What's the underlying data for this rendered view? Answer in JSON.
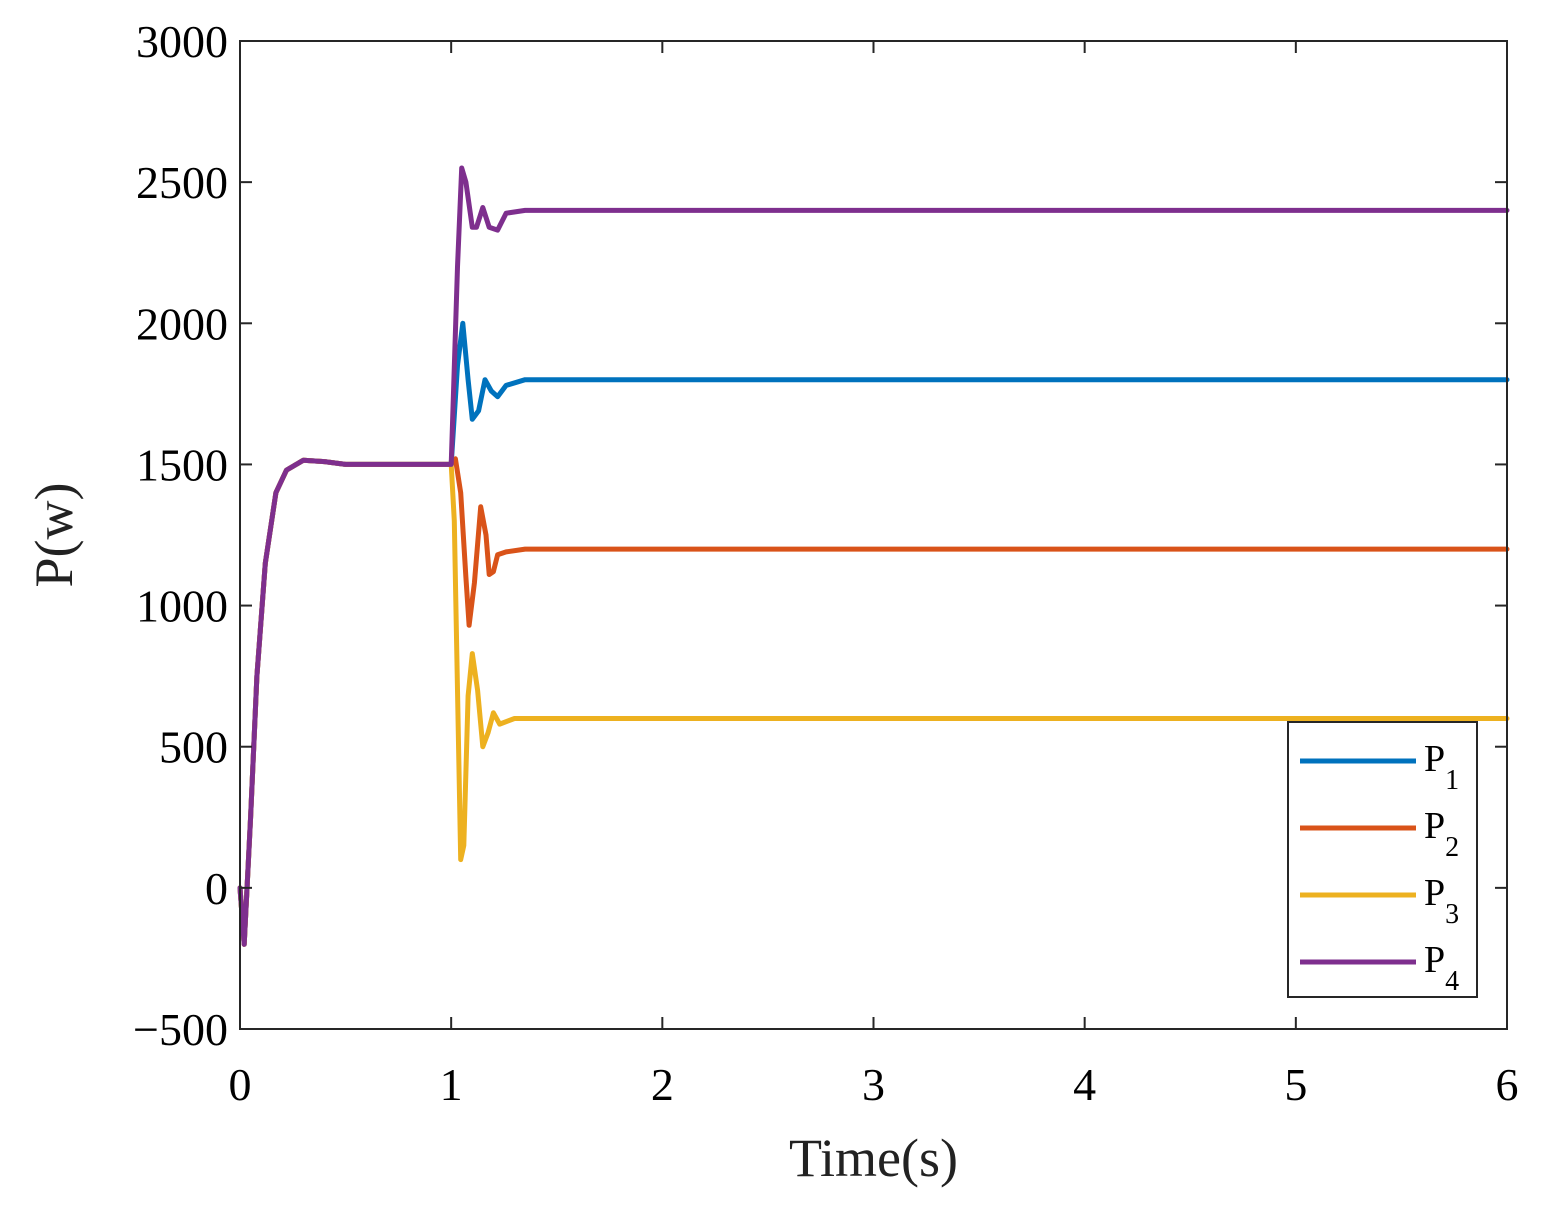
{
  "chart_data": {
    "type": "line",
    "xlabel": "Time(s)",
    "ylabel": "P(w)",
    "xlim": [
      0,
      6
    ],
    "ylim": [
      -500,
      3000
    ],
    "xticks": [
      0,
      1,
      2,
      3,
      4,
      5,
      6
    ],
    "yticks": [
      -500,
      0,
      500,
      1000,
      1500,
      2000,
      2500,
      3000
    ],
    "xtick_labels": [
      "0",
      "1",
      "2",
      "3",
      "4",
      "5",
      "6"
    ],
    "ytick_labels": [
      "−500",
      "0",
      "500",
      "1000",
      "1500",
      "2000",
      "2500",
      "3000"
    ],
    "grid": false,
    "legend_position": "bottom-right",
    "series": [
      {
        "name": "P",
        "sub": "1",
        "color": "#0072BD",
        "points": [
          [
            0,
            0
          ],
          [
            0.02,
            -200
          ],
          [
            0.05,
            250
          ],
          [
            0.08,
            750
          ],
          [
            0.12,
            1150
          ],
          [
            0.17,
            1400
          ],
          [
            0.22,
            1480
          ],
          [
            0.3,
            1515
          ],
          [
            0.4,
            1510
          ],
          [
            0.5,
            1500
          ],
          [
            1.0,
            1500
          ],
          [
            1.03,
            1850
          ],
          [
            1.055,
            2000
          ],
          [
            1.08,
            1800
          ],
          [
            1.1,
            1660
          ],
          [
            1.13,
            1690
          ],
          [
            1.16,
            1800
          ],
          [
            1.19,
            1760
          ],
          [
            1.22,
            1740
          ],
          [
            1.26,
            1780
          ],
          [
            1.35,
            1800
          ],
          [
            1.5,
            1800
          ],
          [
            6.0,
            1800
          ]
        ]
      },
      {
        "name": "P",
        "sub": "2",
        "color": "#D95319",
        "points": [
          [
            0,
            0
          ],
          [
            0.02,
            -200
          ],
          [
            0.05,
            250
          ],
          [
            0.08,
            750
          ],
          [
            0.12,
            1150
          ],
          [
            0.17,
            1400
          ],
          [
            0.22,
            1480
          ],
          [
            0.3,
            1515
          ],
          [
            0.4,
            1510
          ],
          [
            0.5,
            1500
          ],
          [
            1.0,
            1500
          ],
          [
            1.02,
            1520
          ],
          [
            1.045,
            1400
          ],
          [
            1.07,
            1100
          ],
          [
            1.085,
            930
          ],
          [
            1.11,
            1080
          ],
          [
            1.14,
            1350
          ],
          [
            1.165,
            1250
          ],
          [
            1.18,
            1110
          ],
          [
            1.2,
            1120
          ],
          [
            1.22,
            1180
          ],
          [
            1.26,
            1190
          ],
          [
            1.35,
            1200
          ],
          [
            1.5,
            1200
          ],
          [
            6.0,
            1200
          ]
        ]
      },
      {
        "name": "P",
        "sub": "3",
        "color": "#EDB120",
        "points": [
          [
            0,
            0
          ],
          [
            0.02,
            -200
          ],
          [
            0.05,
            250
          ],
          [
            0.08,
            750
          ],
          [
            0.12,
            1150
          ],
          [
            0.17,
            1400
          ],
          [
            0.22,
            1480
          ],
          [
            0.3,
            1515
          ],
          [
            0.4,
            1510
          ],
          [
            0.5,
            1500
          ],
          [
            1.0,
            1500
          ],
          [
            1.015,
            1300
          ],
          [
            1.03,
            700
          ],
          [
            1.045,
            100
          ],
          [
            1.06,
            150
          ],
          [
            1.08,
            680
          ],
          [
            1.1,
            830
          ],
          [
            1.125,
            700
          ],
          [
            1.15,
            500
          ],
          [
            1.175,
            550
          ],
          [
            1.2,
            620
          ],
          [
            1.23,
            580
          ],
          [
            1.3,
            600
          ],
          [
            1.5,
            600
          ],
          [
            6.0,
            600
          ]
        ]
      },
      {
        "name": "P",
        "sub": "4",
        "color": "#7E2F8E",
        "points": [
          [
            0,
            0
          ],
          [
            0.02,
            -200
          ],
          [
            0.05,
            250
          ],
          [
            0.08,
            750
          ],
          [
            0.12,
            1150
          ],
          [
            0.17,
            1400
          ],
          [
            0.22,
            1480
          ],
          [
            0.3,
            1515
          ],
          [
            0.4,
            1510
          ],
          [
            0.5,
            1500
          ],
          [
            1.0,
            1500
          ],
          [
            1.03,
            2200
          ],
          [
            1.05,
            2550
          ],
          [
            1.07,
            2500
          ],
          [
            1.1,
            2340
          ],
          [
            1.12,
            2340
          ],
          [
            1.15,
            2410
          ],
          [
            1.18,
            2340
          ],
          [
            1.22,
            2330
          ],
          [
            1.26,
            2390
          ],
          [
            1.35,
            2400
          ],
          [
            1.5,
            2400
          ],
          [
            6.0,
            2400
          ]
        ]
      }
    ]
  }
}
